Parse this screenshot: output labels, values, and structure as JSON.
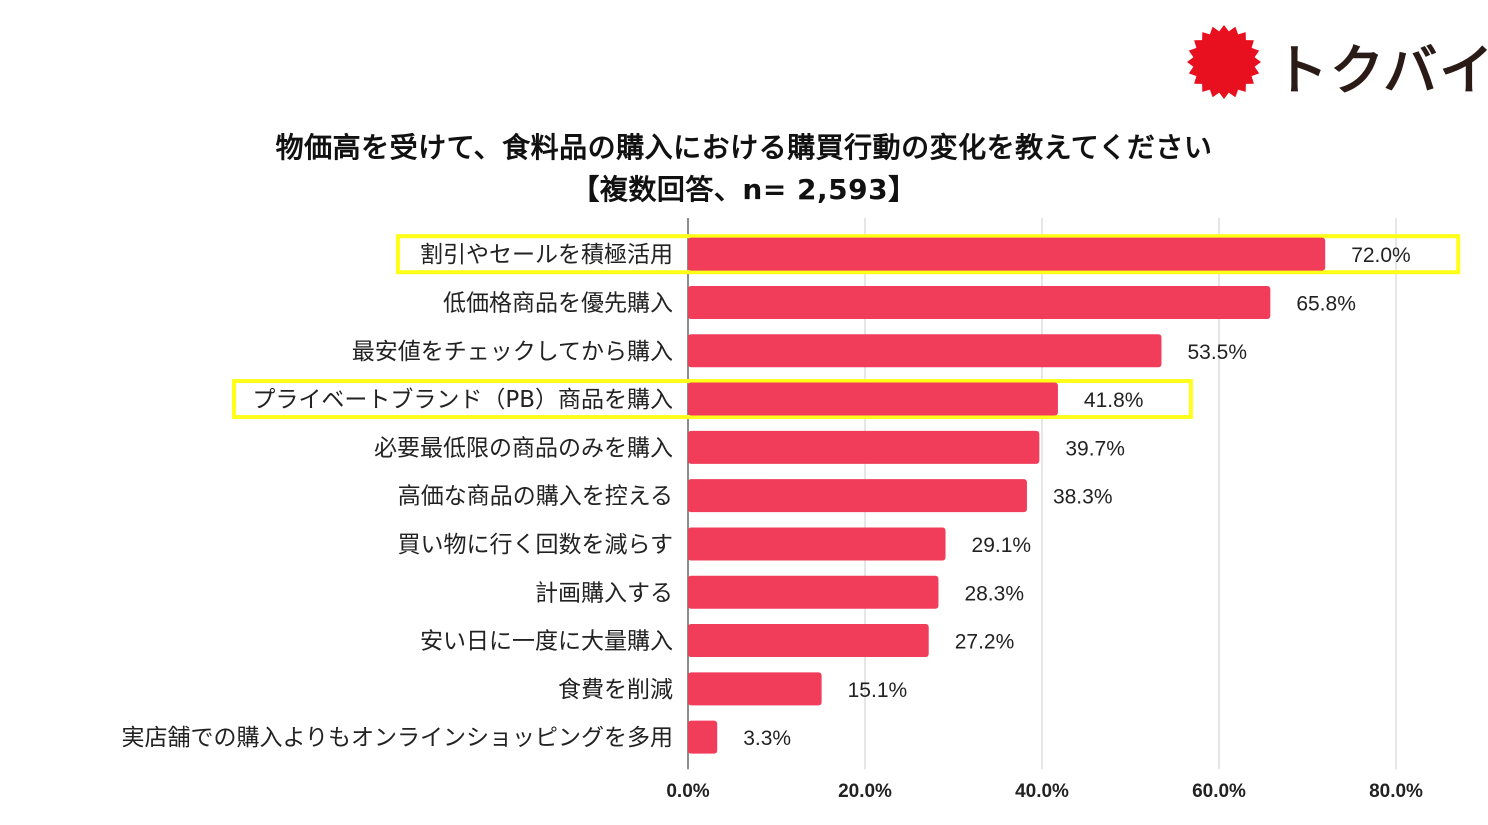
{
  "logo": {
    "text": "トクバイ",
    "mark_color": "#e8101e",
    "text_color": "#2a1b17"
  },
  "chart_data": {
    "type": "bar",
    "orientation": "horizontal",
    "title": "物価高を受けて、食料品の購入における購買行動の変化を教えてください",
    "subtitle": "【複数回答、n= 2,593】",
    "categories": [
      "割引やセールを積極活用",
      "低価格商品を優先購入",
      "最安値をチェックしてから購入",
      "プライベートブランド（PB）商品を購入",
      "必要最低限の商品のみを購入",
      "高価な商品の購入を控える",
      "買い物に行く回数を減らす",
      "計画購入する",
      "安い日に一度に大量購入",
      "食費を削減",
      "実店舗での購入よりもオンラインショッピングを多用"
    ],
    "values": [
      72.0,
      65.8,
      53.5,
      41.8,
      39.7,
      38.3,
      29.1,
      28.3,
      27.2,
      15.1,
      3.3
    ],
    "value_labels": [
      "72.0%",
      "65.8%",
      "53.5%",
      "41.8%",
      "39.7%",
      "38.3%",
      "29.1%",
      "28.3%",
      "27.2%",
      "15.1%",
      "3.3%"
    ],
    "highlighted": [
      "割引やセールを積極活用",
      "プライベートブランド（PB）商品を購入"
    ],
    "xlim": [
      0,
      80
    ],
    "xticks": [
      0,
      20,
      40,
      60,
      80
    ],
    "xtick_labels": [
      "0.0%",
      "20.0%",
      "40.0%",
      "60.0%",
      "80.0%"
    ],
    "grid": true,
    "bar_color": "#f23d5a",
    "highlight_color": "#ffff1a"
  }
}
